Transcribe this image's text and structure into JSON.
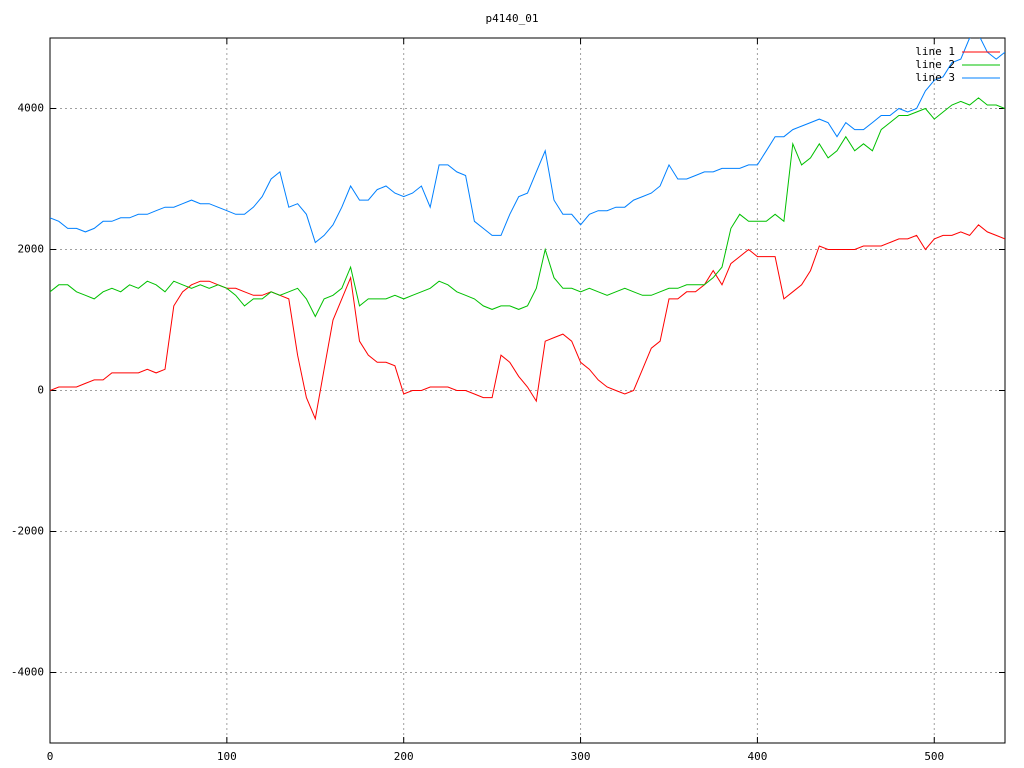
{
  "chart_data": {
    "type": "line",
    "title": "p4140_01",
    "x": [
      0,
      5,
      10,
      15,
      20,
      25,
      30,
      35,
      40,
      45,
      50,
      55,
      60,
      65,
      70,
      75,
      80,
      85,
      90,
      95,
      100,
      105,
      110,
      115,
      120,
      125,
      130,
      135,
      140,
      145,
      150,
      155,
      160,
      165,
      170,
      175,
      180,
      185,
      190,
      195,
      200,
      205,
      210,
      215,
      220,
      225,
      230,
      235,
      240,
      245,
      250,
      255,
      260,
      265,
      270,
      275,
      280,
      285,
      290,
      295,
      300,
      305,
      310,
      315,
      320,
      325,
      330,
      335,
      340,
      345,
      350,
      355,
      360,
      365,
      370,
      375,
      380,
      385,
      390,
      395,
      400,
      405,
      410,
      415,
      420,
      425,
      430,
      435,
      440,
      445,
      450,
      455,
      460,
      465,
      470,
      475,
      480,
      485,
      490,
      495,
      500,
      505,
      510,
      515,
      520,
      525,
      530,
      535,
      540
    ],
    "series": [
      {
        "name": "line 1",
        "color": "#ff0000",
        "values": [
          0,
          50,
          50,
          50,
          100,
          150,
          150,
          250,
          250,
          250,
          250,
          300,
          250,
          300,
          1200,
          1400,
          1500,
          1550,
          1550,
          1500,
          1450,
          1450,
          1400,
          1350,
          1350,
          1400,
          1350,
          1300,
          500,
          -100,
          -400,
          300,
          1000,
          1300,
          1600,
          700,
          500,
          400,
          400,
          350,
          -50,
          0,
          0,
          50,
          50,
          50,
          0,
          0,
          -50,
          -100,
          -100,
          500,
          400,
          200,
          50,
          -150,
          700,
          750,
          800,
          700,
          400,
          300,
          150,
          50,
          0,
          -50,
          0,
          300,
          600,
          700,
          1300,
          1300,
          1400,
          1400,
          1500,
          1700,
          1500,
          1800,
          1900,
          2000,
          1900,
          1900,
          1900,
          1300,
          1400,
          1500,
          1700,
          2050,
          2000,
          2000,
          2000,
          2000,
          2050,
          2050,
          2050,
          2100,
          2150,
          2150,
          2200,
          2000,
          2150,
          2200,
          2200,
          2250,
          2200,
          2350,
          2250,
          2200,
          2150
        ]
      },
      {
        "name": "line 2",
        "color": "#00c000",
        "values": [
          1400,
          1500,
          1500,
          1400,
          1350,
          1300,
          1400,
          1450,
          1400,
          1500,
          1450,
          1550,
          1500,
          1400,
          1550,
          1500,
          1450,
          1500,
          1450,
          1500,
          1450,
          1350,
          1200,
          1300,
          1300,
          1400,
          1350,
          1400,
          1450,
          1300,
          1050,
          1300,
          1350,
          1450,
          1750,
          1200,
          1300,
          1300,
          1300,
          1350,
          1300,
          1350,
          1400,
          1450,
          1550,
          1500,
          1400,
          1350,
          1300,
          1200,
          1150,
          1200,
          1200,
          1150,
          1200,
          1450,
          2000,
          1600,
          1450,
          1450,
          1400,
          1450,
          1400,
          1350,
          1400,
          1450,
          1400,
          1350,
          1350,
          1400,
          1450,
          1450,
          1500,
          1500,
          1500,
          1600,
          1750,
          2300,
          2500,
          2400,
          2400,
          2400,
          2500,
          2400,
          3500,
          3200,
          3300,
          3500,
          3300,
          3400,
          3600,
          3400,
          3500,
          3400,
          3700,
          3800,
          3900,
          3900,
          3950,
          4000,
          3850,
          3950,
          4050,
          4100,
          4050,
          4150,
          4050,
          4050,
          4000
        ]
      },
      {
        "name": "line 3",
        "color": "#0080ff",
        "values": [
          2450,
          2400,
          2300,
          2300,
          2250,
          2300,
          2400,
          2400,
          2450,
          2450,
          2500,
          2500,
          2550,
          2600,
          2600,
          2650,
          2700,
          2650,
          2650,
          2600,
          2550,
          2500,
          2500,
          2600,
          2750,
          3000,
          3100,
          2600,
          2650,
          2500,
          2100,
          2200,
          2350,
          2600,
          2900,
          2700,
          2700,
          2850,
          2900,
          2800,
          2750,
          2800,
          2900,
          2600,
          3200,
          3200,
          3100,
          3050,
          2400,
          2300,
          2200,
          2200,
          2500,
          2750,
          2800,
          3100,
          3400,
          2700,
          2500,
          2500,
          2350,
          2500,
          2550,
          2550,
          2600,
          2600,
          2700,
          2750,
          2800,
          2900,
          3200,
          3000,
          3000,
          3050,
          3100,
          3100,
          3150,
          3150,
          3150,
          3200,
          3200,
          3400,
          3600,
          3600,
          3700,
          3750,
          3800,
          3850,
          3800,
          3600,
          3800,
          3700,
          3700,
          3800,
          3900,
          3900,
          4000,
          3950,
          4000,
          4250,
          4400,
          4450,
          4650,
          4700,
          5000,
          5050,
          4800,
          4700,
          4800
        ]
      }
    ],
    "xlim": [
      0,
      540
    ],
    "xticks": [
      0,
      100,
      200,
      300,
      400,
      500
    ],
    "ylim": [
      -5000,
      5000
    ],
    "yticks": [
      -4000,
      -2000,
      0,
      2000,
      4000
    ],
    "grid": true,
    "legend": "top-right"
  }
}
